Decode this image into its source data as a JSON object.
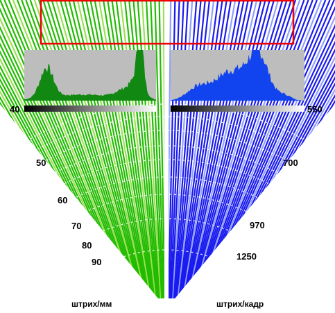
{
  "fan": {
    "left_color": "#22bb00",
    "left_color_light": "#9adf55",
    "right_color": "#1a1aee",
    "right_color_light": "#8fa0ff",
    "divider_color": "#ffffff"
  },
  "selection_box": {
    "color": "#ee0000"
  },
  "histograms": {
    "left": {
      "fill": "#118811",
      "background": "#bdbdbd"
    },
    "right": {
      "fill": "#1144ee",
      "background": "#bdbdbd"
    }
  },
  "scale": {
    "left_start": "40",
    "right_start": "550"
  },
  "labels_left": [
    "50",
    "60",
    "70",
    "80",
    "90"
  ],
  "labels_right": [
    "700",
    "970",
    "1250"
  ],
  "units": {
    "left": "штрих/мм",
    "right": "штрих/кадр"
  }
}
